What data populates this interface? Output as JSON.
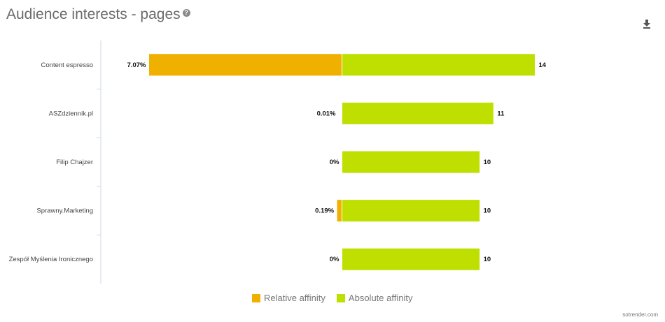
{
  "chart_data": {
    "type": "bar",
    "orientation": "horizontal",
    "title": "Audience interests - pages",
    "categories": [
      "Content espresso",
      "ASZdziennik.pl",
      "Filip Chajzer",
      "Sprawny.Marketing",
      "Zespół Myślenia Ironicznego"
    ],
    "series": [
      {
        "name": "Relative affinity",
        "values": [
          7.07,
          0.01,
          0,
          0.19,
          0
        ],
        "labels": [
          "7.07%",
          "0.01%",
          "0%",
          "0.19%",
          "0%"
        ],
        "color": "#f0b000",
        "direction": "left"
      },
      {
        "name": "Absolute affinity",
        "values": [
          14,
          11,
          10,
          10,
          10
        ],
        "labels": [
          "14",
          "11",
          "10",
          "10",
          "10"
        ],
        "color": "#bfdf00",
        "direction": "right"
      }
    ],
    "legend": "bottom",
    "grid": false
  },
  "icons": {
    "help": "question-circle-icon",
    "download": "download-icon"
  },
  "watermark": "sotrender.com"
}
